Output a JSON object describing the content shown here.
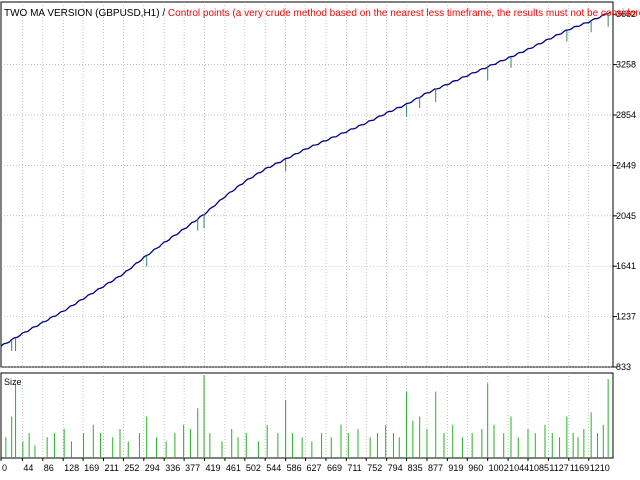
{
  "chart_data": {
    "type": "line",
    "title_name": "TWO MA VERSION (GBPUSD,H1)",
    "title_separator": " / ",
    "title_note": "Control points (a very crude method based on the nearest less timeframe, the results must not be considered)",
    "sub_panel_label": "Size",
    "x_ticks": [
      "0",
      "44",
      "86",
      "128",
      "169",
      "211",
      "252",
      "294",
      "336",
      "377",
      "419",
      "461",
      "502",
      "544",
      "586",
      "627",
      "669",
      "711",
      "752",
      "794",
      "835",
      "877",
      "919",
      "960",
      "1002",
      "1044",
      "1085",
      "1127",
      "1169",
      "1210"
    ],
    "y_ticks": [
      "3662",
      "3258",
      "2854",
      "2449",
      "2045",
      "1641",
      "1237",
      "833"
    ],
    "xlim": [
      0,
      1260
    ],
    "ylim": [
      833,
      3760
    ],
    "series": [
      {
        "x": [
          0,
          44,
          86,
          128,
          169,
          211,
          252,
          294,
          336,
          377,
          419,
          461,
          502,
          544,
          586,
          627,
          669,
          711,
          752,
          794,
          835,
          877,
          919,
          960,
          1002,
          1044,
          1085,
          1127,
          1169,
          1210,
          1255
        ],
        "values": [
          1000,
          1100,
          1190,
          1280,
          1380,
          1480,
          1580,
          1710,
          1830,
          1940,
          2060,
          2200,
          2320,
          2420,
          2500,
          2580,
          2650,
          2720,
          2790,
          2870,
          2940,
          3030,
          3100,
          3170,
          3240,
          3310,
          3380,
          3460,
          3540,
          3600,
          3680
        ]
      }
    ],
    "size_bars": {
      "x": [
        10,
        22,
        30,
        45,
        58,
        70,
        95,
        110,
        130,
        145,
        170,
        190,
        205,
        230,
        245,
        262,
        285,
        300,
        320,
        340,
        358,
        376,
        390,
        405,
        418,
        430,
        455,
        475,
        488,
        505,
        530,
        548,
        570,
        586,
        600,
        620,
        640,
        660,
        680,
        700,
        715,
        735,
        760,
        775,
        792,
        808,
        820,
        835,
        848,
        862,
        877,
        895,
        912,
        930,
        950,
        970,
        990,
        1002,
        1015,
        1035,
        1050,
        1065,
        1085,
        1100,
        1120,
        1135,
        1150,
        1165,
        1178,
        1188,
        1200,
        1215,
        1228,
        1240,
        1250
      ],
      "values": [
        0.25,
        0.5,
        0.9,
        0.2,
        0.3,
        0.15,
        0.25,
        0.3,
        0.35,
        0.2,
        0.3,
        0.4,
        0.3,
        0.25,
        0.35,
        0.2,
        0.3,
        0.5,
        0.25,
        0.2,
        0.3,
        0.4,
        0.35,
        0.6,
        1.0,
        0.3,
        0.2,
        0.35,
        0.25,
        0.3,
        0.2,
        0.4,
        0.3,
        0.7,
        0.3,
        0.25,
        0.2,
        0.3,
        0.25,
        0.4,
        0.3,
        0.35,
        0.25,
        0.3,
        0.4,
        0.3,
        0.25,
        0.8,
        0.45,
        0.5,
        0.35,
        0.8,
        0.3,
        0.4,
        0.25,
        0.3,
        0.35,
        0.9,
        0.4,
        0.3,
        0.5,
        0.25,
        0.35,
        0.3,
        0.4,
        0.3,
        0.25,
        0.5,
        0.3,
        0.25,
        0.35,
        0.55,
        0.3,
        0.4,
        0.95
      ]
    },
    "grid": true,
    "colors": {
      "line": "#00008b",
      "title_name": "#000000",
      "title_note": "#ff0000",
      "size_bars": "#22b322",
      "dips": "#2e8b57",
      "grid": "#a0a0a0",
      "axis": "#000000"
    }
  }
}
